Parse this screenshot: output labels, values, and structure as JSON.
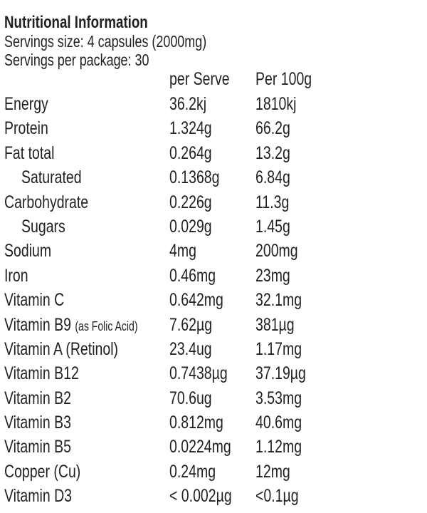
{
  "panel": {
    "title": "Nutritional Information",
    "serving_size": "Servings size: 4 capsules (2000mg)",
    "servings_per_package": "Servings per package: 30",
    "columns": [
      "per Serve",
      "Per 100g"
    ],
    "rows": [
      {
        "name": "Energy",
        "note": "",
        "per_serve": "36.2kj",
        "per_100g": "1810kj",
        "indent": false
      },
      {
        "name": "Protein",
        "note": "",
        "per_serve": "1.324g",
        "per_100g": "66.2g",
        "indent": false
      },
      {
        "name": "Fat total",
        "note": "",
        "per_serve": "0.264g",
        "per_100g": "13.2g",
        "indent": false
      },
      {
        "name": "Saturated",
        "note": "",
        "per_serve": "0.1368g",
        "per_100g": "6.84g",
        "indent": true
      },
      {
        "name": "Carbohydrate",
        "note": "",
        "per_serve": "0.226g",
        "per_100g": "11.3g",
        "indent": false
      },
      {
        "name": "Sugars",
        "note": "",
        "per_serve": "0.029g",
        "per_100g": "1.45g",
        "indent": true
      },
      {
        "name": "Sodium",
        "note": "",
        "per_serve": "4mg",
        "per_100g": "200mg",
        "indent": false
      },
      {
        "name": "Iron",
        "note": "",
        "per_serve": "0.46mg",
        "per_100g": "23mg",
        "indent": false
      },
      {
        "name": "Vitamin C",
        "note": "",
        "per_serve": "0.642mg",
        "per_100g": "32.1mg",
        "indent": false
      },
      {
        "name": "Vitamin B9",
        "note": "(as Folic Acid)",
        "per_serve": "7.62µg",
        "per_100g": "381µg",
        "indent": false
      },
      {
        "name": "Vitamin A (Retinol)",
        "note": "",
        "per_serve": "23.4ug",
        "per_100g": "1.17mg",
        "indent": false
      },
      {
        "name": "Vitamin B12",
        "note": "",
        "per_serve": "0.7438µg",
        "per_100g": "37.19µg",
        "indent": false
      },
      {
        "name": "Vitamin B2",
        "note": "",
        "per_serve": "70.6ug",
        "per_100g": "3.53mg",
        "indent": false
      },
      {
        "name": "Vitamin B3",
        "note": "",
        "per_serve": "0.812mg",
        "per_100g": "40.6mg",
        "indent": false
      },
      {
        "name": "Vitamin B5",
        "note": "",
        "per_serve": "0.0224mg",
        "per_100g": "1.12mg",
        "indent": false
      },
      {
        "name": "Copper (Cu)",
        "note": "",
        "per_serve": "0.24mg",
        "per_100g": "12mg",
        "indent": false
      },
      {
        "name": "Vitamin D3",
        "note": "",
        "per_serve": "< 0.002µg",
        "per_100g": "<0.1µg",
        "indent": false
      }
    ]
  }
}
